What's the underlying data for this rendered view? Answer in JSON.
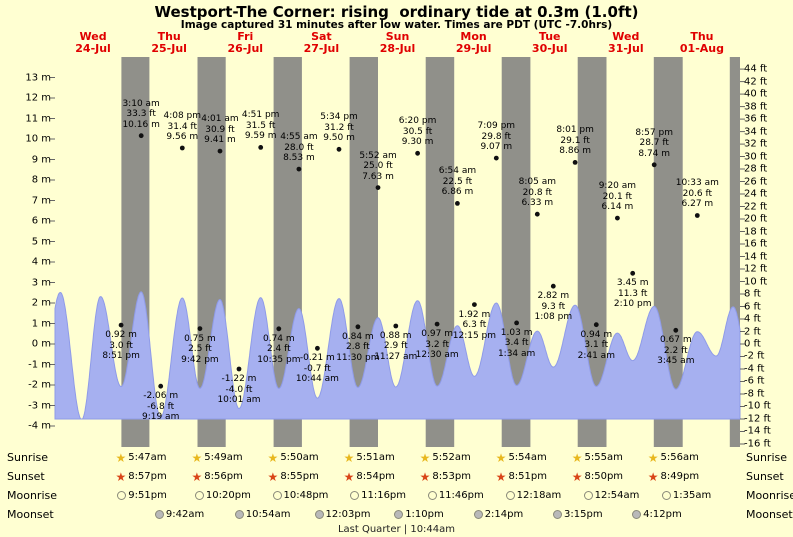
{
  "title": "Westport-The Corner: rising  ordinary tide at 0.3m (1.0ft)",
  "subtitle": "Image captured 31 minutes after low water. Times are PDT (UTC -7.0hrs)",
  "rows": {
    "sunrise": "Sunrise",
    "sunset": "Sunset",
    "moonrise": "Moonrise",
    "moonset": "Moonset"
  },
  "colors": {
    "background": "#ffffd2",
    "night_band": "#90908a",
    "wave_fill": "#a6b0f0",
    "wave_stroke": "#8f9be8",
    "day_label": "#e00000",
    "dot": "#101010",
    "tick": "#666666",
    "sunrise_star": "#e8b81e",
    "sunset_star": "#d94518",
    "moonrise_fill": "#ffffcf",
    "moonset_fill": "#b9b9b9",
    "moon_border": "#8a8a7a"
  },
  "chart_data": {
    "type": "area",
    "title": "Westport-The Corner: rising ordinary tide at 0.3m (1.0ft)",
    "x_axis": {
      "days": [
        {
          "dow": "Wed",
          "date": "24-Jul"
        },
        {
          "dow": "Thu",
          "date": "25-Jul"
        },
        {
          "dow": "Fri",
          "date": "26-Jul"
        },
        {
          "dow": "Sat",
          "date": "27-Jul"
        },
        {
          "dow": "Sun",
          "date": "28-Jul"
        },
        {
          "dow": "Mon",
          "date": "29-Jul"
        },
        {
          "dow": "Tue",
          "date": "30-Jul"
        },
        {
          "dow": "Wed",
          "date": "31-Jul"
        },
        {
          "dow": "Thu",
          "date": "01-Aug"
        }
      ]
    },
    "y_axis_left": {
      "unit": "m",
      "min": -4,
      "max": 13,
      "tick_step": 1
    },
    "y_axis_right": {
      "unit": "ft",
      "min": -16,
      "max": 44,
      "tick_step": 2
    },
    "tide_events": [
      {
        "day": 0,
        "type": "low",
        "time": "8:51 pm",
        "height_m": "0.92",
        "height_ft": "3.0"
      },
      {
        "day": 1,
        "type": "high",
        "time": "3:10 am",
        "height_m": "10.16",
        "height_ft": "33.3"
      },
      {
        "day": 1,
        "type": "low",
        "time": "9:19 am",
        "height_m": "-2.06",
        "height_ft": "-6.8"
      },
      {
        "day": 1,
        "type": "high",
        "time": "4:08 pm",
        "height_m": "9.56",
        "height_ft": "31.4"
      },
      {
        "day": 1,
        "type": "low",
        "time": "9:42 pm",
        "height_m": "0.75",
        "height_ft": "2.5"
      },
      {
        "day": 2,
        "type": "high",
        "time": "4:01 am",
        "height_m": "9.41",
        "height_ft": "30.9"
      },
      {
        "day": 2,
        "type": "low",
        "time": "10:01 am",
        "height_m": "-1.22",
        "height_ft": "-4.0"
      },
      {
        "day": 2,
        "type": "high",
        "time": "4:51 pm",
        "height_m": "9.59",
        "height_ft": "31.5"
      },
      {
        "day": 2,
        "type": "low",
        "time": "10:35 pm",
        "height_m": "0.74",
        "height_ft": "2.4"
      },
      {
        "day": 3,
        "type": "high",
        "time": "4:55 am",
        "height_m": "8.53",
        "height_ft": "28.0"
      },
      {
        "day": 3,
        "type": "low",
        "time": "10:44 am",
        "height_m": "-0.21",
        "height_ft": "-0.7"
      },
      {
        "day": 3,
        "type": "high",
        "time": "5:34 pm",
        "height_m": "9.50",
        "height_ft": "31.2"
      },
      {
        "day": 3,
        "type": "low",
        "time": "11:30 pm",
        "height_m": "0.84",
        "height_ft": "2.8"
      },
      {
        "day": 4,
        "type": "high",
        "time": "5:52 am",
        "height_m": "7.63",
        "height_ft": "25.0"
      },
      {
        "day": 4,
        "type": "low",
        "time": "11:27 am",
        "height_m": "0.88",
        "height_ft": "2.9"
      },
      {
        "day": 4,
        "type": "high",
        "time": "6:20 pm",
        "height_m": "9.30",
        "height_ft": "30.5"
      },
      {
        "day": 5,
        "type": "low",
        "time": "12:30 am",
        "height_m": "0.97",
        "height_ft": "3.2"
      },
      {
        "day": 5,
        "type": "high",
        "time": "6:54 am",
        "height_m": "6.86",
        "height_ft": "22.5"
      },
      {
        "day": 5,
        "type": "low",
        "time": "12:15 pm",
        "height_m": "1.92",
        "height_ft": "6.3"
      },
      {
        "day": 5,
        "type": "high",
        "time": "7:09 pm",
        "height_m": "9.07",
        "height_ft": "29.8"
      },
      {
        "day": 6,
        "type": "low",
        "time": "1:34 am",
        "height_m": "1.03",
        "height_ft": "3.4"
      },
      {
        "day": 6,
        "type": "high",
        "time": "8:05 am",
        "height_m": "6.33",
        "height_ft": "20.8"
      },
      {
        "day": 6,
        "type": "low",
        "time": "1:08 pm",
        "height_m": "2.82",
        "height_ft": "9.3"
      },
      {
        "day": 6,
        "type": "high",
        "time": "8:01 pm",
        "height_m": "8.86",
        "height_ft": "29.1"
      },
      {
        "day": 7,
        "type": "low",
        "time": "2:41 am",
        "height_m": "0.94",
        "height_ft": "3.1"
      },
      {
        "day": 7,
        "type": "high",
        "time": "9:20 am",
        "height_m": "6.14",
        "height_ft": "20.1"
      },
      {
        "day": 7,
        "type": "low",
        "time": "2:10 pm",
        "height_m": "3.45",
        "height_ft": "11.3"
      },
      {
        "day": 7,
        "type": "high",
        "time": "8:57 pm",
        "height_m": "8.74",
        "height_ft": "28.7"
      },
      {
        "day": 8,
        "type": "low",
        "time": "3:45 am",
        "height_m": "0.67",
        "height_ft": "2.2"
      },
      {
        "day": 8,
        "type": "high",
        "time": "10:33 am",
        "height_m": "6.27",
        "height_ft": "20.6"
      }
    ],
    "sun": {
      "sunset": [
        "8:57pm",
        "8:56pm",
        "8:55pm",
        "8:54pm",
        "8:53pm",
        "8:51pm",
        "8:50pm",
        "8:49pm"
      ],
      "sunrise": [
        "5:47am",
        "5:49am",
        "5:50am",
        "5:51am",
        "5:52am",
        "5:54am",
        "5:55am",
        "5:56am"
      ]
    },
    "moon": {
      "moonrise": [
        {
          "day": 0,
          "time": "9:51pm"
        },
        {
          "day": 1,
          "time": "10:20pm"
        },
        {
          "day": 2,
          "time": "10:48pm"
        },
        {
          "day": 3,
          "time": "11:16pm"
        },
        {
          "day": 4,
          "time": "11:46pm"
        },
        {
          "day": 6,
          "time": "12:18am"
        },
        {
          "day": 7,
          "time": "12:54am"
        },
        {
          "day": 8,
          "time": "1:35am"
        }
      ],
      "moonset": [
        {
          "day": 1,
          "time": "9:42am"
        },
        {
          "day": 2,
          "time": "10:54am"
        },
        {
          "day": 3,
          "time": "12:03pm"
        },
        {
          "day": 4,
          "time": "1:10pm"
        },
        {
          "day": 5,
          "time": "2:14pm"
        },
        {
          "day": 6,
          "time": "3:15pm"
        },
        {
          "day": 7,
          "time": "4:12pm"
        }
      ],
      "phase_label": "Last Quarter | 10:44am"
    }
  },
  "estimated": {
    "curve_points": [
      {
        "t_hours": -4.5,
        "m": 0.9
      },
      {
        "t_hours": 1.67,
        "m": 10.1
      },
      {
        "t_hours": 8.42,
        "m": -2.3
      },
      {
        "t_hours": 14.37,
        "m": 9.7
      },
      {
        "t_hours": 208.5,
        "m": 3.9
      },
      {
        "t_hours": 213.83,
        "m": 8.7
      },
      {
        "t_hours": 220.0,
        "m": 0.6
      }
    ],
    "final_sunset": "8:47 pm"
  }
}
